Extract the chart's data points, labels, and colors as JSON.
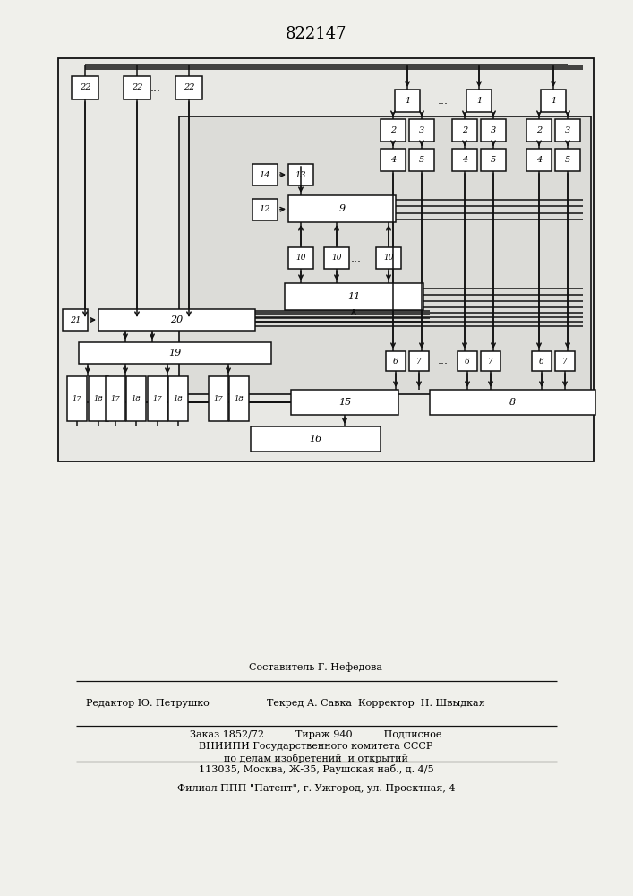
{
  "title": "822147",
  "bg_color": "#f0f0eb",
  "line_color": "#111111",
  "box_color": "#ffffff",
  "box_edge": "#111111",
  "lw": 1.1,
  "footer": {
    "line1_center": "Составитель Г. Нефедова",
    "line2_left": "Редактор Ю. Петрушко",
    "line2_right": "Текред А. Савка  Корректор  Н. Швыдкая",
    "line3": "Заказ 1852/72          Тираж 940          Подписное",
    "line4": "ВНИИПИ Государственного комитета СССР",
    "line5": "по делам изобретений  и открытий",
    "line6": "113035, Москва, Ж-35, Раушская наб., д. 4/5",
    "line7": "Филиал ППП \"Патент\", г. Ужгород, ул. Проектная, 4"
  }
}
